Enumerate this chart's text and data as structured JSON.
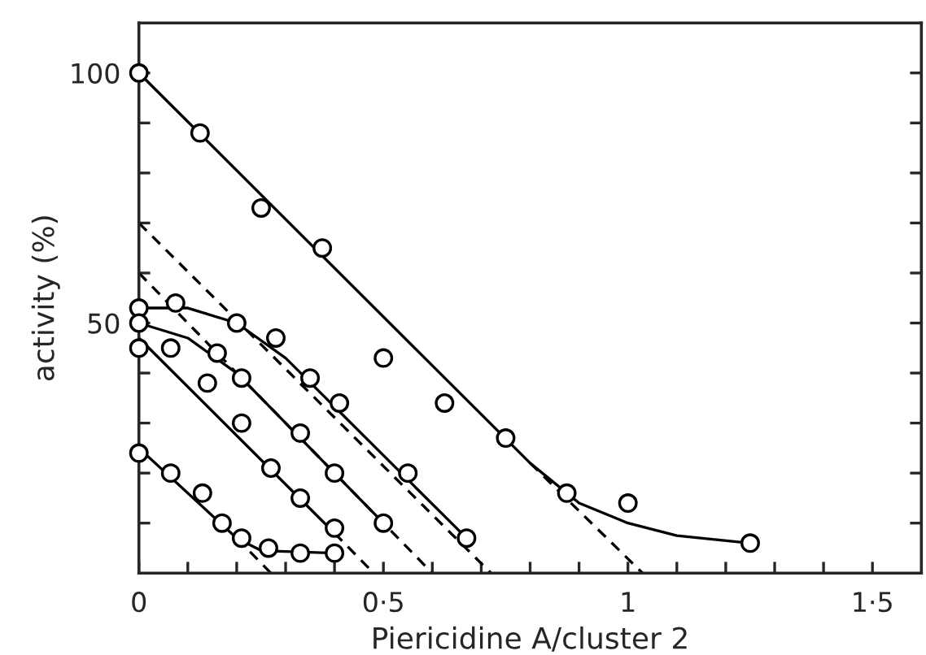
{
  "chart_data": {
    "type": "scatter",
    "xlabel": "Piericidine A/cluster 2",
    "ylabel": "activity (%)",
    "xlim": [
      0,
      1.6
    ],
    "ylim": [
      0,
      110
    ],
    "xticks": [
      0,
      {
        "value": 0.1,
        "label": null
      },
      {
        "value": 0.2,
        "label": null
      },
      {
        "value": 0.3,
        "label": null
      },
      {
        "value": 0.4,
        "label": null
      },
      {
        "value": 0.5,
        "label": "0·5"
      },
      {
        "value": 0.6,
        "label": null
      },
      {
        "value": 0.7,
        "label": null
      },
      {
        "value": 0.8,
        "label": null
      },
      {
        "value": 0.9,
        "label": null
      },
      1,
      {
        "value": 1.1,
        "label": null
      },
      {
        "value": 1.2,
        "label": null
      },
      {
        "value": 1.3,
        "label": null
      },
      {
        "value": 1.4,
        "label": null
      },
      {
        "value": 1.5,
        "label": "1·5"
      }
    ],
    "yticks": [
      {
        "value": 10,
        "label": null
      },
      {
        "value": 20,
        "label": null
      },
      {
        "value": 30,
        "label": null
      },
      {
        "value": 40,
        "label": null
      },
      50,
      {
        "value": 60,
        "label": null
      },
      {
        "value": 70,
        "label": null
      },
      {
        "value": 80,
        "label": null
      },
      {
        "value": 90,
        "label": null
      },
      100
    ],
    "grid": false,
    "legend": false,
    "marker": "circle",
    "series": [
      {
        "color": "#000000",
        "x": [
          0,
          0.125,
          0.25,
          0.375,
          0.5,
          0.625,
          0.75,
          0.875,
          1.0,
          1.25
        ],
        "values": [
          100,
          88,
          73,
          65,
          43,
          34,
          27,
          16,
          14,
          6
        ]
      },
      {
        "color": "#000000",
        "x": [
          0,
          0.075,
          0.2,
          0.28,
          0.35,
          0.41,
          0.55,
          0.67
        ],
        "values": [
          53,
          54,
          50,
          47,
          39,
          34,
          20,
          7
        ]
      },
      {
        "color": "#000000",
        "x": [
          0,
          0.16,
          0.21,
          0.33,
          0.4,
          0.5
        ],
        "values": [
          50,
          44,
          39,
          28,
          20,
          10
        ]
      },
      {
        "color": "#000000",
        "x": [
          0,
          0.065,
          0.14,
          0.21,
          0.27,
          0.33,
          0.4
        ],
        "values": [
          45,
          45,
          38,
          30,
          21,
          15,
          9
        ]
      },
      {
        "color": "#000000",
        "x": [
          0,
          0.065,
          0.13,
          0.17,
          0.21,
          0.265,
          0.33,
          0.4
        ],
        "values": [
          24,
          20,
          16,
          10,
          7,
          5,
          4,
          4
        ]
      },
      {
        "type": "line",
        "color": "#000000",
        "marker": "none",
        "line_style": "solid",
        "x": [
          0,
          0.8,
          0.9,
          1.0,
          1.1,
          1.25
        ],
        "values": [
          100,
          22,
          14,
          10,
          7.5,
          6
        ]
      },
      {
        "type": "line",
        "color": "#000000",
        "marker": "none",
        "line_style": "dashed",
        "x": [
          0.8,
          1.03
        ],
        "values": [
          22,
          0
        ]
      },
      {
        "type": "line",
        "color": "#000000",
        "marker": "none",
        "line_style": "solid",
        "x": [
          0,
          0.1,
          0.2,
          0.3,
          0.67
        ],
        "values": [
          53,
          53,
          50,
          43,
          7
        ]
      },
      {
        "type": "line",
        "color": "#000000",
        "marker": "none",
        "line_style": "dashed",
        "x": [
          0,
          0.72
        ],
        "values": [
          70,
          0
        ]
      },
      {
        "type": "line",
        "color": "#000000",
        "marker": "none",
        "line_style": "solid",
        "x": [
          0,
          0.1,
          0.2,
          0.5
        ],
        "values": [
          50,
          47,
          40,
          10
        ]
      },
      {
        "type": "line",
        "color": "#000000",
        "marker": "none",
        "line_style": "dashed",
        "x": [
          0,
          0.6
        ],
        "values": [
          60,
          0
        ]
      },
      {
        "type": "line",
        "color": "#000000",
        "marker": "none",
        "line_style": "solid",
        "x": [
          0,
          0.4
        ],
        "values": [
          47,
          8
        ]
      },
      {
        "type": "line",
        "color": "#000000",
        "marker": "none",
        "line_style": "dashed",
        "x": [
          0.4,
          0.48
        ],
        "values": [
          8,
          0
        ]
      },
      {
        "type": "line",
        "color": "#000000",
        "marker": "none",
        "line_style": "solid",
        "x": [
          0,
          0.2,
          0.25,
          0.4
        ],
        "values": [
          25,
          7,
          4.5,
          4
        ]
      },
      {
        "type": "line",
        "color": "#000000",
        "marker": "none",
        "line_style": "dashed",
        "x": [
          0.2,
          0.27
        ],
        "values": [
          7,
          0
        ]
      }
    ]
  }
}
